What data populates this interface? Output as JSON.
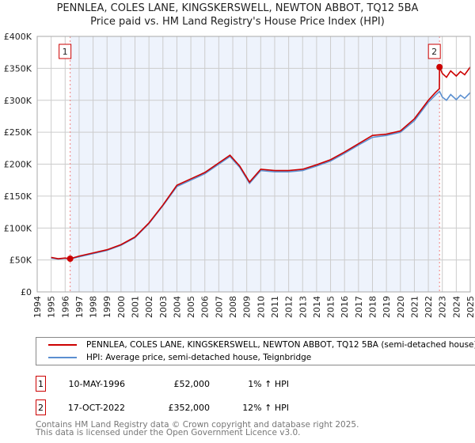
{
  "title_line1": "PENNLEA, COLES LANE, KINGSKERSWELL, NEWTON ABBOT, TQ12 5BA",
  "title_line2": "Price paid vs. HM Land Registry's House Price Index (HPI)",
  "chart_data": {
    "type": "line",
    "xlim": [
      1994,
      2025
    ],
    "ylim": [
      0,
      400000
    ],
    "x_ticks": [
      "1994",
      "1995",
      "1996",
      "1997",
      "1998",
      "1999",
      "2000",
      "2001",
      "2002",
      "2003",
      "2004",
      "2005",
      "2006",
      "2007",
      "2008",
      "2009",
      "2010",
      "2011",
      "2012",
      "2013",
      "2014",
      "2015",
      "2016",
      "2017",
      "2018",
      "2019",
      "2020",
      "2021",
      "2022",
      "2023",
      "2024",
      "2025"
    ],
    "y_ticks": [
      {
        "v": 0,
        "label": "£0"
      },
      {
        "v": 50000,
        "label": "£50K"
      },
      {
        "v": 100000,
        "label": "£100K"
      },
      {
        "v": 150000,
        "label": "£150K"
      },
      {
        "v": 200000,
        "label": "£200K"
      },
      {
        "v": 250000,
        "label": "£250K"
      },
      {
        "v": 300000,
        "label": "£300K"
      },
      {
        "v": 350000,
        "label": "£350K"
      },
      {
        "v": 400000,
        "label": "£400K"
      }
    ],
    "series": [
      {
        "name": "PENNLEA, COLES LANE, KINGSKERSWELL, NEWTON ABBOT, TQ12 5BA (semi-detached house)",
        "color": "#cc0000",
        "x": [
          1995,
          1995.5,
          1996,
          1996.36,
          1997,
          1998,
          1999,
          2000,
          2001,
          2002,
          2003,
          2004,
          2005,
          2006,
          2007,
          2007.8,
          2008.5,
          2009.2,
          2010,
          2011,
          2012,
          2013,
          2014,
          2015,
          2016,
          2017,
          2018,
          2019,
          2020,
          2021,
          2022,
          2022.5,
          2022.79,
          2022.8,
          2023,
          2023.3,
          2023.6,
          2024,
          2024.3,
          2024.6,
          2025
        ],
        "y": [
          54000,
          52000,
          53000,
          52000,
          56000,
          61000,
          66000,
          74000,
          86000,
          108000,
          136000,
          167000,
          177000,
          187000,
          202000,
          214000,
          197000,
          172000,
          192000,
          190000,
          190000,
          192000,
          199000,
          207000,
          219000,
          232000,
          245000,
          247000,
          252000,
          271000,
          300000,
          312000,
          318000,
          352000,
          342000,
          336000,
          346000,
          338000,
          345000,
          340000,
          352000
        ]
      },
      {
        "name": "HPI: Average price, semi-detached house, Teignbridge",
        "color": "#5b8fd0",
        "x": [
          1995,
          1995.5,
          1996,
          1996.36,
          1997,
          1998,
          1999,
          2000,
          2001,
          2002,
          2003,
          2004,
          2005,
          2006,
          2007,
          2007.8,
          2008.5,
          2009.2,
          2010,
          2011,
          2012,
          2013,
          2014,
          2015,
          2016,
          2017,
          2018,
          2019,
          2020,
          2021,
          2022,
          2022.5,
          2022.8,
          2023,
          2023.3,
          2023.6,
          2024,
          2024.3,
          2024.6,
          2025
        ],
        "y": [
          53000,
          51500,
          52500,
          51500,
          55000,
          60000,
          65000,
          73000,
          85000,
          107000,
          135000,
          165000,
          175000,
          185000,
          200000,
          212000,
          195000,
          170000,
          190000,
          188000,
          188000,
          190000,
          197000,
          205000,
          217000,
          230000,
          242000,
          245000,
          250000,
          268000,
          297000,
          308000,
          314000,
          305000,
          300000,
          309000,
          301000,
          308000,
          303000,
          312000
        ]
      }
    ],
    "sales": [
      {
        "n": "1",
        "x": 1996.36,
        "y": 52000
      },
      {
        "n": "2",
        "x": 2022.8,
        "y": 352000
      }
    ]
  },
  "legend": [
    "PENNLEA, COLES LANE, KINGSKERSWELL, NEWTON ABBOT, TQ12 5BA (semi-detached house)",
    "HPI: Average price, semi-detached house, Teignbridge"
  ],
  "transactions": [
    {
      "n": "1",
      "date": "10-MAY-1996",
      "price": "£52,000",
      "hpi": "1% ↑ HPI"
    },
    {
      "n": "2",
      "date": "17-OCT-2022",
      "price": "£352,000",
      "hpi": "12% ↑ HPI"
    }
  ],
  "footer1": "Contains HM Land Registry data © Crown copyright and database right 2025.",
  "footer2": "This data is licensed under the Open Government Licence v3.0."
}
